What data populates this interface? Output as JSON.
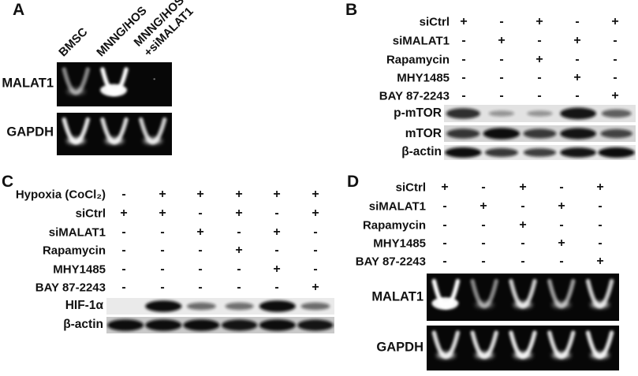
{
  "colors": {
    "background": "#ffffff",
    "text": "#111111",
    "gel_background": "#070707",
    "gel_band": "#ffffff",
    "blot_band": "#0d0d0d"
  },
  "panels": {
    "A": {
      "label": "A",
      "lane_labels": [
        "BMSC",
        "MNNG/HOS",
        "MNNG/HOS\n+siMALAT1"
      ],
      "gels": [
        {
          "label": "MALAT1",
          "lanes": [
            0.4,
            1.0,
            0.05
          ]
        },
        {
          "label": "GAPDH",
          "lanes": [
            0.85,
            0.8,
            0.75
          ]
        }
      ]
    },
    "B": {
      "label": "B",
      "treatments": [
        {
          "name": "siCtrl",
          "signs": [
            "+",
            "-",
            "+",
            "-",
            "+"
          ]
        },
        {
          "name": "siMALAT1",
          "signs": [
            "-",
            "+",
            "-",
            "+",
            "-"
          ]
        },
        {
          "name": "Rapamycin",
          "signs": [
            "-",
            "-",
            "+",
            "-",
            "-"
          ]
        },
        {
          "name": "MHY1485",
          "signs": [
            "-",
            "-",
            "-",
            "+",
            "-"
          ]
        },
        {
          "name": "BAY 87-2243",
          "signs": [
            "-",
            "-",
            "-",
            "-",
            "+"
          ]
        }
      ],
      "blots": [
        {
          "label": "p-mTOR",
          "background": "#e2e2e2",
          "bands": [
            0.8,
            0.18,
            0.18,
            0.95,
            0.5
          ]
        },
        {
          "label": "mTOR",
          "background": "#d5d5d5",
          "bands": [
            0.75,
            1.0,
            0.72,
            0.95,
            0.65
          ]
        },
        {
          "label": "β-actin",
          "background": "#e6e6e6",
          "bands": [
            1.0,
            0.75,
            0.7,
            0.95,
            1.0
          ]
        }
      ]
    },
    "C": {
      "label": "C",
      "treatments": [
        {
          "name": "Hypoxia (CoCl₂)",
          "signs": [
            "-",
            "+",
            "+",
            "+",
            "+",
            "+"
          ]
        },
        {
          "name": "siCtrl",
          "signs": [
            "+",
            "+",
            "-",
            "+",
            "-",
            "+"
          ]
        },
        {
          "name": "siMALAT1",
          "signs": [
            "-",
            "-",
            "+",
            "-",
            "+",
            "-"
          ]
        },
        {
          "name": "Rapamycin",
          "signs": [
            "-",
            "-",
            "-",
            "+",
            "-",
            "-"
          ]
        },
        {
          "name": "MHY1485",
          "signs": [
            "-",
            "-",
            "-",
            "-",
            "+",
            "-"
          ]
        },
        {
          "name": "BAY 87-2243",
          "signs": [
            "-",
            "-",
            "-",
            "-",
            "-",
            "+"
          ]
        }
      ],
      "blots": [
        {
          "label": "HIF-1α",
          "background": "#eaeaea",
          "bands": [
            0,
            1.0,
            0.45,
            0.42,
            1.0,
            0.45
          ]
        },
        {
          "label": "β-actin",
          "background": "#c9c9c9",
          "bands": [
            1.0,
            1.0,
            1.0,
            0.95,
            1.0,
            0.95
          ]
        }
      ]
    },
    "D": {
      "label": "D",
      "treatments": [
        {
          "name": "siCtrl",
          "signs": [
            "+",
            "-",
            "+",
            "-",
            "+"
          ]
        },
        {
          "name": "siMALAT1",
          "signs": [
            "-",
            "+",
            "-",
            "+",
            "-"
          ]
        },
        {
          "name": "Rapamycin",
          "signs": [
            "-",
            "-",
            "+",
            "-",
            "-"
          ]
        },
        {
          "name": "MHY1485",
          "signs": [
            "-",
            "-",
            "-",
            "+",
            "-"
          ]
        },
        {
          "name": "BAY 87-2243",
          "signs": [
            "-",
            "-",
            "-",
            "-",
            "+"
          ]
        }
      ],
      "gels": [
        {
          "label": "MALAT1",
          "lanes": [
            1.0,
            0.4,
            0.75,
            0.5,
            0.75
          ]
        },
        {
          "label": "GAPDH",
          "lanes": [
            0.8,
            0.8,
            0.85,
            0.8,
            0.85
          ]
        }
      ]
    }
  }
}
